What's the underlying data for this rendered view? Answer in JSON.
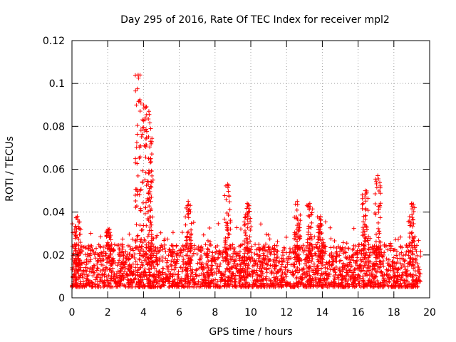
{
  "chart_data": {
    "type": "scatter",
    "title": "Day 295 of 2016, Rate Of TEC Index for receiver mpl2",
    "xlabel": "GPS time / hours",
    "ylabel": "ROTI / TECUs",
    "xlim": [
      0,
      20
    ],
    "ylim": [
      0,
      0.12
    ],
    "xticks": [
      "0",
      "2",
      "4",
      "6",
      "8",
      "10",
      "12",
      "14",
      "16",
      "18",
      "20"
    ],
    "yticks": [
      "0",
      "0.02",
      "0.04",
      "0.06",
      "0.08",
      "0.1",
      "0.12"
    ],
    "grid": true,
    "marker": "+",
    "series": [
      {
        "name": "ROTI",
        "color": "#ff0000",
        "approx_time_range_hours": [
          0,
          19.5
        ],
        "baseline_range": [
          0.005,
          0.025
        ],
        "peaks": [
          {
            "x": 0.3,
            "y": 0.038
          },
          {
            "x": 2.1,
            "y": 0.032
          },
          {
            "x": 3.7,
            "y": 0.104
          },
          {
            "x": 4.0,
            "y": 0.09
          },
          {
            "x": 4.3,
            "y": 0.087
          },
          {
            "x": 4.4,
            "y": 0.065
          },
          {
            "x": 6.5,
            "y": 0.045
          },
          {
            "x": 8.7,
            "y": 0.053
          },
          {
            "x": 9.8,
            "y": 0.044
          },
          {
            "x": 12.6,
            "y": 0.045
          },
          {
            "x": 13.3,
            "y": 0.044
          },
          {
            "x": 13.9,
            "y": 0.038
          },
          {
            "x": 16.4,
            "y": 0.05
          },
          {
            "x": 17.1,
            "y": 0.057
          },
          {
            "x": 19.0,
            "y": 0.044
          }
        ]
      }
    ]
  }
}
